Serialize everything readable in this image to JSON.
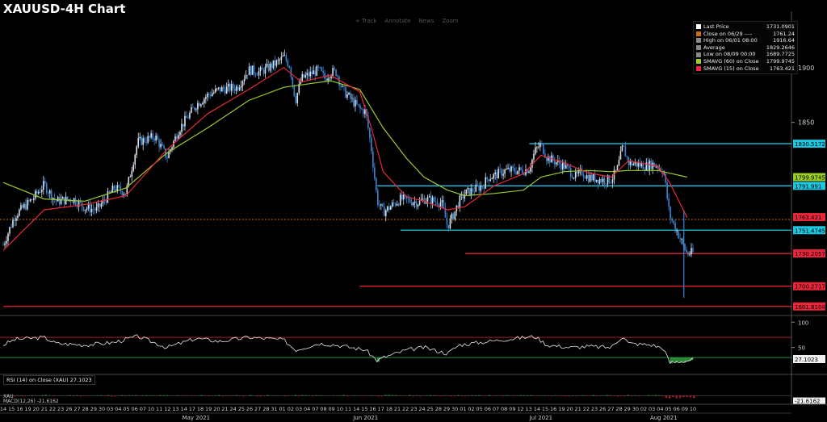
{
  "title": "XAUUSD-4H Chart",
  "toolbar": {
    "track": "+ Track",
    "annotate": "Annotate",
    "news": "News",
    "zoom": "Zoom"
  },
  "colors": {
    "up": "#d8e2ee",
    "down": "#3a86d6",
    "sma15": "#e8273a",
    "sma60": "#9ccc2a",
    "resistance": "#1ec6e0",
    "support": "#e8273a",
    "last_price": "#c96b1a"
  },
  "legend": [
    {
      "label": "Last Price",
      "value": "1731.0901",
      "color": "#ffffff",
      "icon": "square-icon"
    },
    {
      "label": "Close on 06/29 ----",
      "value": "1761.24",
      "color": "#c96b1a",
      "icon": "dash-icon"
    },
    {
      "label": "High on 06/01 08:00",
      "value": "1916.64",
      "color": "#888888",
      "icon": "up-tick-icon"
    },
    {
      "label": "Average",
      "value": "1829.2646",
      "color": "#888888",
      "icon": "dash-icon"
    },
    {
      "label": "Low on 08/09 00:00",
      "value": "1689.7725",
      "color": "#888888",
      "icon": "down-tick-icon"
    },
    {
      "label": "SMAVG (60)  on Close",
      "value": "1799.9745",
      "color": "#9ccc2a",
      "icon": "square-icon"
    },
    {
      "label": "SMAVG (15)  on Close",
      "value": "1763.421",
      "color": "#e8273a",
      "icon": "square-icon"
    }
  ],
  "rsi_legend": {
    "label": "RSI (14)  on Close (XAU)",
    "value": "27.1023"
  },
  "macd_legend": {
    "line1": "XAU",
    "line2": "MACD(12,26) -21.6162"
  },
  "chart_data": {
    "type": "candlestick",
    "price_axis": {
      "ylim": [
        1675,
        1950
      ],
      "ticks": [
        1900,
        1850
      ]
    },
    "level_lines": [
      {
        "value": 1830.5172,
        "label": "1830.5172",
        "color": "#1ec6e0",
        "span": [
          "2021-07-13",
          "2021-08-10"
        ]
      },
      {
        "value": 1799.9745,
        "label": "1799.9745",
        "color": "#9ccc2a",
        "span": null
      },
      {
        "value": 1791.991,
        "label": "1791.991",
        "color": "#1ec6e0",
        "span": [
          "2021-06-17",
          "2021-08-10"
        ]
      },
      {
        "value": 1763.421,
        "label": "1763.421",
        "color": "#e8273a",
        "span": null
      },
      {
        "value": 1751.4745,
        "label": "1751.4745",
        "color": "#1ec6e0",
        "span": [
          "2021-06-21",
          "2021-08-10"
        ]
      },
      {
        "value": 1730.2057,
        "label": "1730.2057",
        "color": "#e8273a",
        "span": [
          "2021-07-02",
          "2021-08-10"
        ]
      },
      {
        "value": 1700.2717,
        "label": "1700.2717",
        "color": "#e8273a",
        "span": [
          "2021-06-14",
          "2021-08-10"
        ]
      },
      {
        "value": 1681.8104,
        "label": "1681.8104",
        "color": "#e8273a",
        "span": [
          "2021-04-14",
          "2021-08-10"
        ]
      }
    ],
    "close_line": 1761.24,
    "price_path": [
      [
        "2021-04-14",
        1738
      ],
      [
        "2021-04-16",
        1765
      ],
      [
        "2021-04-19",
        1780
      ],
      [
        "2021-04-21",
        1793
      ],
      [
        "2021-04-23",
        1778
      ],
      [
        "2021-04-26",
        1780
      ],
      [
        "2021-04-28",
        1772
      ],
      [
        "2021-04-30",
        1770
      ],
      [
        "2021-05-03",
        1790
      ],
      [
        "2021-05-05",
        1786
      ],
      [
        "2021-05-07",
        1832
      ],
      [
        "2021-05-10",
        1837
      ],
      [
        "2021-05-12",
        1818
      ],
      [
        "2021-05-14",
        1843
      ],
      [
        "2021-05-17",
        1866
      ],
      [
        "2021-05-19",
        1875
      ],
      [
        "2021-05-21",
        1880
      ],
      [
        "2021-05-24",
        1882
      ],
      [
        "2021-05-26",
        1898
      ],
      [
        "2021-05-28",
        1896
      ],
      [
        "2021-05-31",
        1905
      ],
      [
        "2021-06-01",
        1910
      ],
      [
        "2021-06-02",
        1902
      ],
      [
        "2021-06-03",
        1870
      ],
      [
        "2021-06-04",
        1890
      ],
      [
        "2021-06-07",
        1898
      ],
      [
        "2021-06-08",
        1890
      ],
      [
        "2021-06-09",
        1896
      ],
      [
        "2021-06-10",
        1896
      ],
      [
        "2021-06-11",
        1880
      ],
      [
        "2021-06-14",
        1862
      ],
      [
        "2021-06-15",
        1860
      ],
      [
        "2021-06-16",
        1825
      ],
      [
        "2021-06-17",
        1778
      ],
      [
        "2021-06-18",
        1768
      ],
      [
        "2021-06-21",
        1780
      ],
      [
        "2021-06-22",
        1779
      ],
      [
        "2021-06-23",
        1778
      ],
      [
        "2021-06-24",
        1777
      ],
      [
        "2021-06-25",
        1780
      ],
      [
        "2021-06-28",
        1777
      ],
      [
        "2021-06-29",
        1755
      ],
      [
        "2021-06-30",
        1765
      ],
      [
        "2021-07-01",
        1778
      ],
      [
        "2021-07-02",
        1785
      ],
      [
        "2021-07-05",
        1792
      ],
      [
        "2021-07-06",
        1800
      ],
      [
        "2021-07-07",
        1801
      ],
      [
        "2021-07-08",
        1804
      ],
      [
        "2021-07-09",
        1806
      ],
      [
        "2021-07-12",
        1806
      ],
      [
        "2021-07-13",
        1808
      ],
      [
        "2021-07-14",
        1824
      ],
      [
        "2021-07-15",
        1830
      ],
      [
        "2021-07-16",
        1818
      ],
      [
        "2021-07-19",
        1810
      ],
      [
        "2021-07-20",
        1805
      ],
      [
        "2021-07-21",
        1800
      ],
      [
        "2021-07-22",
        1805
      ],
      [
        "2021-07-23",
        1800
      ],
      [
        "2021-07-26",
        1797
      ],
      [
        "2021-07-27",
        1798
      ],
      [
        "2021-07-28",
        1806
      ],
      [
        "2021-07-29",
        1828
      ],
      [
        "2021-07-30",
        1813
      ],
      [
        "2021-08-02",
        1810
      ],
      [
        "2021-08-03",
        1812
      ],
      [
        "2021-08-04",
        1810
      ],
      [
        "2021-08-05",
        1805
      ],
      [
        "2021-08-06",
        1765
      ],
      [
        "2021-08-09",
        1730
      ],
      [
        "2021-08-10",
        1731
      ]
    ],
    "sma15": [
      [
        "2021-04-14",
        1733
      ],
      [
        "2021-04-21",
        1770
      ],
      [
        "2021-04-28",
        1775
      ],
      [
        "2021-05-05",
        1783
      ],
      [
        "2021-05-12",
        1825
      ],
      [
        "2021-05-19",
        1858
      ],
      [
        "2021-05-26",
        1880
      ],
      [
        "2021-06-01",
        1900
      ],
      [
        "2021-06-04",
        1887
      ],
      [
        "2021-06-09",
        1893
      ],
      [
        "2021-06-14",
        1878
      ],
      [
        "2021-06-16",
        1845
      ],
      [
        "2021-06-18",
        1805
      ],
      [
        "2021-06-22",
        1782
      ],
      [
        "2021-06-25",
        1778
      ],
      [
        "2021-06-29",
        1770
      ],
      [
        "2021-07-02",
        1773
      ],
      [
        "2021-07-07",
        1792
      ],
      [
        "2021-07-12",
        1803
      ],
      [
        "2021-07-15",
        1820
      ],
      [
        "2021-07-19",
        1813
      ],
      [
        "2021-07-23",
        1804
      ],
      [
        "2021-07-27",
        1800
      ],
      [
        "2021-07-30",
        1815
      ],
      [
        "2021-08-04",
        1810
      ],
      [
        "2021-08-06",
        1795
      ],
      [
        "2021-08-09",
        1763
      ]
    ],
    "sma60": [
      [
        "2021-04-14",
        1795
      ],
      [
        "2021-04-21",
        1780
      ],
      [
        "2021-04-28",
        1778
      ],
      [
        "2021-05-05",
        1790
      ],
      [
        "2021-05-12",
        1822
      ],
      [
        "2021-05-19",
        1845
      ],
      [
        "2021-05-26",
        1870
      ],
      [
        "2021-06-01",
        1882
      ],
      [
        "2021-06-09",
        1888
      ],
      [
        "2021-06-14",
        1880
      ],
      [
        "2021-06-18",
        1845
      ],
      [
        "2021-06-22",
        1817
      ],
      [
        "2021-06-25",
        1800
      ],
      [
        "2021-06-29",
        1788
      ],
      [
        "2021-07-02",
        1783
      ],
      [
        "2021-07-07",
        1785
      ],
      [
        "2021-07-12",
        1788
      ],
      [
        "2021-07-15",
        1800
      ],
      [
        "2021-07-19",
        1805
      ],
      [
        "2021-07-23",
        1806
      ],
      [
        "2021-07-27",
        1805
      ],
      [
        "2021-07-30",
        1806
      ],
      [
        "2021-08-04",
        1806
      ],
      [
        "2021-08-09",
        1800
      ]
    ],
    "rsi": {
      "ticks": [
        100,
        50
      ],
      "upper": 70,
      "lower": 30,
      "last": 27.1023,
      "path": [
        [
          "2021-04-14",
          55
        ],
        [
          "2021-04-16",
          66
        ],
        [
          "2021-04-21",
          70
        ],
        [
          "2021-04-23",
          58
        ],
        [
          "2021-04-28",
          55
        ],
        [
          "2021-05-03",
          60
        ],
        [
          "2021-05-07",
          72
        ],
        [
          "2021-05-12",
          50
        ],
        [
          "2021-05-17",
          68
        ],
        [
          "2021-05-21",
          62
        ],
        [
          "2021-05-26",
          70
        ],
        [
          "2021-06-01",
          65
        ],
        [
          "2021-06-03",
          45
        ],
        [
          "2021-06-07",
          58
        ],
        [
          "2021-06-10",
          55
        ],
        [
          "2021-06-15",
          45
        ],
        [
          "2021-06-17",
          24
        ],
        [
          "2021-06-18",
          30
        ],
        [
          "2021-06-22",
          45
        ],
        [
          "2021-06-25",
          50
        ],
        [
          "2021-06-29",
          38
        ],
        [
          "2021-07-01",
          55
        ],
        [
          "2021-07-06",
          62
        ],
        [
          "2021-07-09",
          66
        ],
        [
          "2021-07-14",
          72
        ],
        [
          "2021-07-16",
          55
        ],
        [
          "2021-07-20",
          50
        ],
        [
          "2021-07-23",
          52
        ],
        [
          "2021-07-27",
          50
        ],
        [
          "2021-07-29",
          73
        ],
        [
          "2021-07-30",
          58
        ],
        [
          "2021-08-03",
          55
        ],
        [
          "2021-08-05",
          48
        ],
        [
          "2021-08-06",
          20
        ],
        [
          "2021-08-09",
          24
        ],
        [
          "2021-08-10",
          27
        ]
      ]
    },
    "macd": {
      "last": -21.6162,
      "ylim": [
        -30,
        15
      ]
    },
    "x_axis": {
      "start": "2021-04-14",
      "end": "2021-08-10",
      "day_ticks": [
        "14",
        "15",
        "16",
        "19",
        "20",
        "21",
        "22",
        "23",
        "26",
        "27",
        "28",
        "29",
        "30",
        "03",
        "04",
        "05",
        "06",
        "07",
        "10",
        "11",
        "12",
        "13",
        "14",
        "17",
        "18",
        "19",
        "20",
        "21",
        "24",
        "25",
        "26",
        "27",
        "28",
        "31",
        "01",
        "02",
        "03",
        "04",
        "07",
        "08",
        "09",
        "10",
        "11",
        "14",
        "15",
        "16",
        "17",
        "18",
        "21",
        "22",
        "23",
        "24",
        "25",
        "28",
        "29",
        "30",
        "01",
        "02",
        "05",
        "06",
        "07",
        "08",
        "09",
        "12",
        "13",
        "14",
        "15",
        "16",
        "19",
        "20",
        "21",
        "22",
        "23",
        "26",
        "27",
        "28",
        "29",
        "30",
        "02",
        "03",
        "04",
        "05",
        "06",
        "09",
        "10"
      ],
      "months": [
        {
          "label": "May 2021",
          "date": "2021-05-17"
        },
        {
          "label": "Jun 2021",
          "date": "2021-06-15"
        },
        {
          "label": "Jul 2021",
          "date": "2021-07-15"
        },
        {
          "label": "Aug 2021",
          "date": "2021-08-05"
        }
      ]
    }
  }
}
